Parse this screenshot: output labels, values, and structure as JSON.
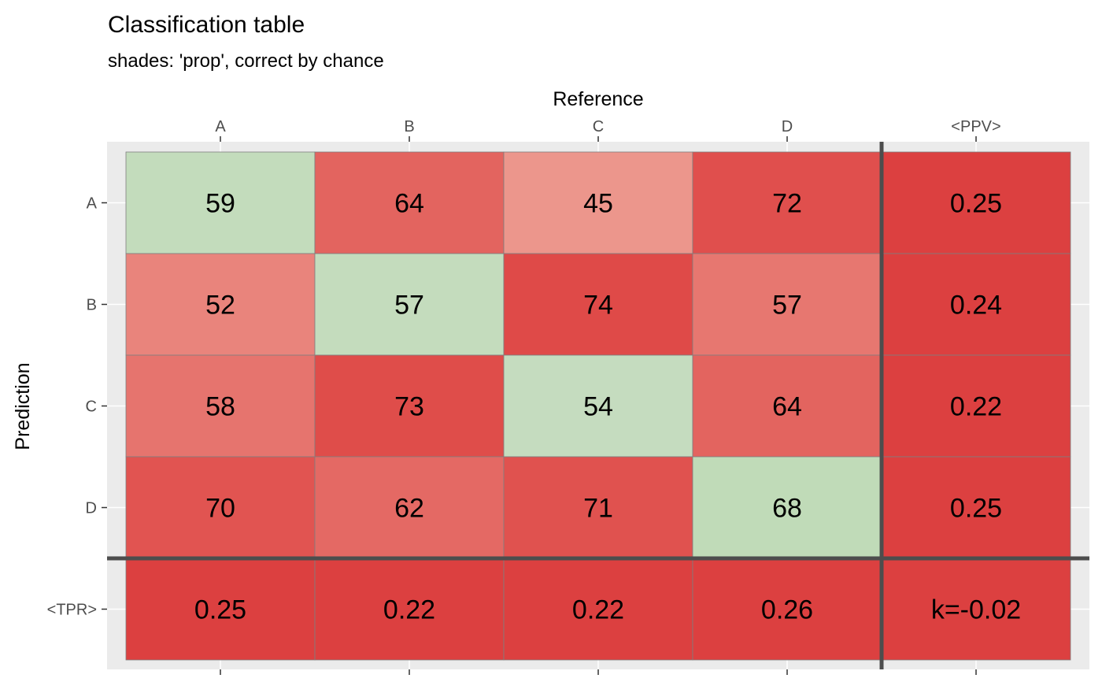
{
  "chart_data": {
    "type": "heatmap",
    "title": "Classification table",
    "subtitle": "shades: 'prop', correct by chance",
    "xlabel": "Reference",
    "ylabel": "Prediction",
    "x_categories": [
      "A",
      "B",
      "C",
      "D"
    ],
    "y_categories": [
      "A",
      "B",
      "C",
      "D"
    ],
    "x_margin_label": "<PPV>",
    "y_margin_label": "<TPR>",
    "matrix": [
      [
        59,
        64,
        45,
        72
      ],
      [
        52,
        57,
        74,
        57
      ],
      [
        58,
        73,
        54,
        64
      ],
      [
        70,
        62,
        71,
        68
      ]
    ],
    "ppv": [
      "0.25",
      "0.24",
      "0.22",
      "0.25"
    ],
    "tpr": [
      "0.25",
      "0.22",
      "0.22",
      "0.26"
    ],
    "kappa_label": "k=-0.02",
    "colors": {
      "correct_low": "#c8ddc3",
      "correct_high": "#bedbb5",
      "wrong_low": "#ec968c",
      "wrong_high": "#df4a48",
      "margin": "#dc4040",
      "panel_bg": "#ebebeb",
      "separator": "#4d4d4d"
    }
  }
}
